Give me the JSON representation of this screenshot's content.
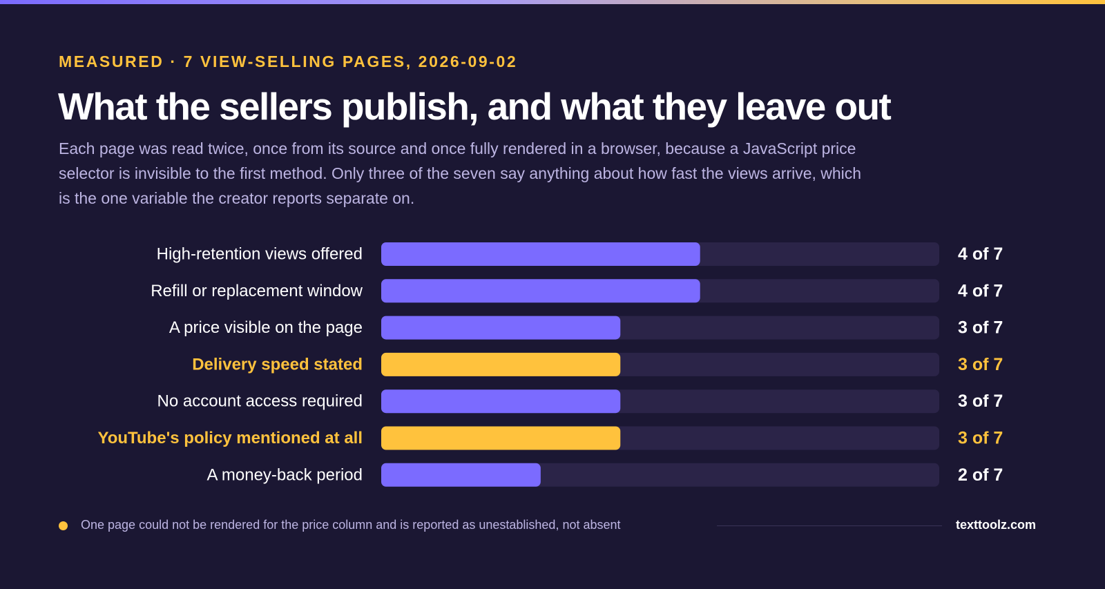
{
  "kicker": "MEASURED · 7 VIEW-SELLING PAGES, 2026-09-02",
  "title": "What the sellers publish, and what they leave out",
  "subtitle": "Each page was read twice, once from its source and once fully rendered in a browser, because a JavaScript price selector is invisible to the first method. Only three of the seven say anything about how fast the views arrive, which is the one variable the creator reports separate on.",
  "footer": {
    "note": "One page could not be rendered for the price column and is reported as unestablished, not absent",
    "brand": "texttoolz.com"
  },
  "colors": {
    "background": "#1b1733",
    "bar_default": "#7b6bff",
    "bar_highlight": "#ffc23d",
    "track": "#2b2448",
    "text": "#ffffff",
    "muted": "#bdb5e3"
  },
  "chart_data": {
    "type": "bar",
    "orientation": "horizontal",
    "total": 7,
    "xlim": [
      0,
      7
    ],
    "categories": [
      "High-retention views offered",
      "Refill or replacement window",
      "A price visible on the page",
      "Delivery speed stated",
      "No account access required",
      "YouTube's policy mentioned at all",
      "A money-back period"
    ],
    "values": [
      4,
      4,
      3,
      3,
      3,
      3,
      2
    ],
    "value_labels": [
      "4 of 7",
      "4 of 7",
      "3 of 7",
      "3 of 7",
      "3 of 7",
      "3 of 7",
      "2 of 7"
    ],
    "highlighted": [
      false,
      false,
      false,
      true,
      false,
      true,
      false
    ]
  }
}
